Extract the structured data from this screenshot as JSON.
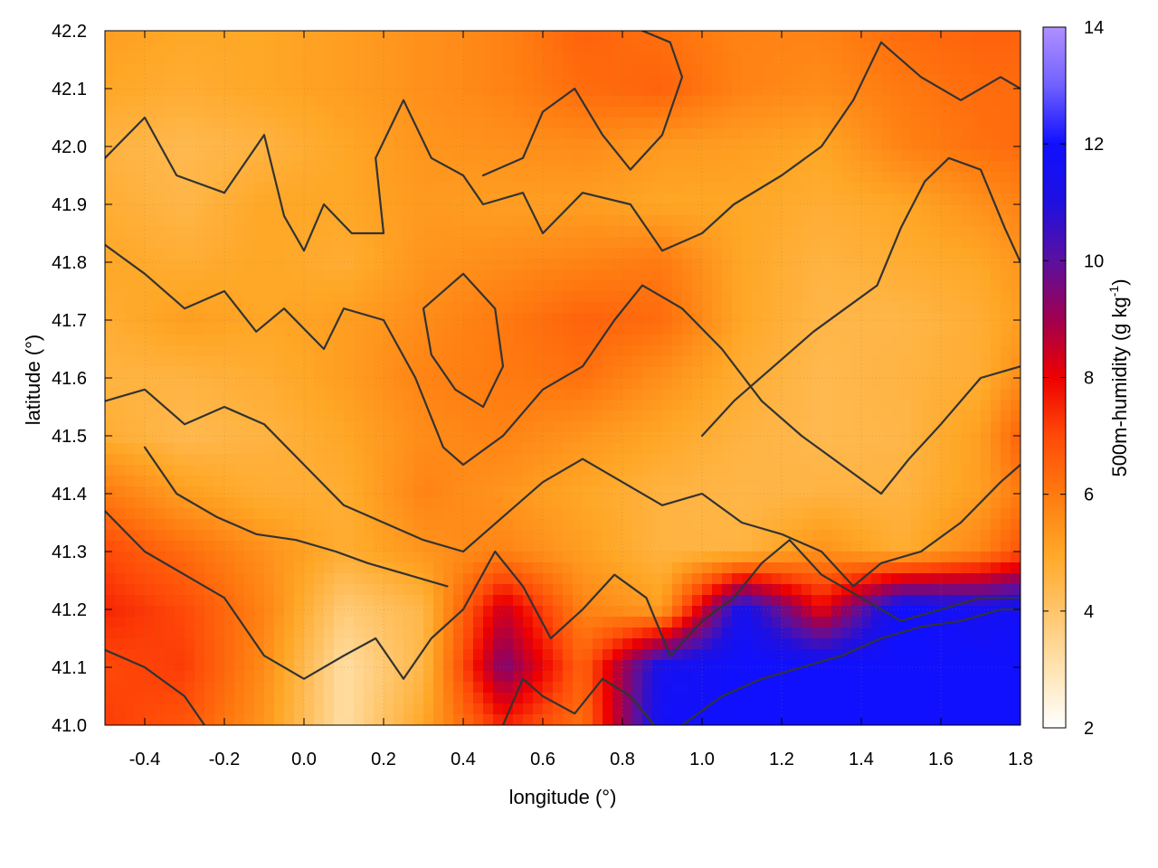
{
  "chart_data": {
    "type": "heatmap",
    "title": "",
    "xlabel": "longitude (°)",
    "ylabel": "latitude (°)",
    "colorbar_label": "500m-humidity (g kg",
    "colorbar_label_sup": "-1",
    "colorbar_label_end": ")",
    "xlim": [
      -0.5,
      1.8
    ],
    "ylim": [
      41.0,
      42.2
    ],
    "clim": [
      2,
      14
    ],
    "x_ticks": [
      -0.4,
      -0.2,
      0.0,
      0.2,
      0.4,
      0.6,
      0.8,
      1.0,
      1.2,
      1.4,
      1.6,
      1.8
    ],
    "x_tick_labels": [
      "-0.4",
      "-0.2",
      "0.0",
      "0.2",
      "0.4",
      "0.6",
      "0.8",
      "1.0",
      "1.2",
      "1.4",
      "1.6",
      "1.8"
    ],
    "y_ticks": [
      41.0,
      41.1,
      41.2,
      41.3,
      41.4,
      41.5,
      41.6,
      41.7,
      41.8,
      41.9,
      42.0,
      42.1,
      42.2
    ],
    "y_tick_labels": [
      "41.0",
      "41.1",
      "41.2",
      "41.3",
      "41.4",
      "41.5",
      "41.6",
      "41.7",
      "41.8",
      "41.9",
      "42.0",
      "42.1",
      "42.2"
    ],
    "colorbar_ticks": [
      2,
      4,
      6,
      8,
      10,
      12,
      14
    ],
    "colorbar_tick_labels": [
      "2",
      "4",
      "6",
      "8",
      "10",
      "12",
      "14"
    ],
    "grid": "dotted",
    "colormap": [
      {
        "value": 2,
        "color": "#ffffff"
      },
      {
        "value": 3,
        "color": "#ffe4b3"
      },
      {
        "value": 4,
        "color": "#ffc56a"
      },
      {
        "value": 5,
        "color": "#ffa726"
      },
      {
        "value": 6,
        "color": "#ff7a10"
      },
      {
        "value": 7,
        "color": "#ff4a08"
      },
      {
        "value": 8,
        "color": "#ee0000"
      },
      {
        "value": 9,
        "color": "#a00050"
      },
      {
        "value": 10,
        "color": "#5a10a0"
      },
      {
        "value": 11,
        "color": "#1e10e0"
      },
      {
        "value": 12,
        "color": "#1010ff"
      },
      {
        "value": 13,
        "color": "#7060ff"
      },
      {
        "value": 14,
        "color": "#b090ff"
      }
    ],
    "field_grid": {
      "x": [
        -0.5,
        -0.3,
        -0.1,
        0.1,
        0.3,
        0.5,
        0.7,
        0.9,
        1.1,
        1.3,
        1.5,
        1.7,
        1.8
      ],
      "y": [
        42.2,
        42.1,
        42.0,
        41.9,
        41.8,
        41.7,
        41.6,
        41.5,
        41.4,
        41.3,
        41.2,
        41.1,
        41.0
      ],
      "values": [
        [
          5.2,
          5.0,
          5.0,
          5.2,
          5.5,
          5.8,
          6.5,
          6.2,
          5.8,
          5.8,
          6.3,
          6.5,
          6.5
        ],
        [
          5.0,
          4.8,
          5.0,
          5.2,
          5.5,
          5.8,
          6.3,
          6.5,
          5.8,
          5.6,
          6.0,
          6.3,
          6.3
        ],
        [
          4.6,
          4.4,
          4.6,
          5.0,
          5.4,
          5.5,
          5.6,
          5.3,
          5.2,
          5.0,
          5.8,
          6.2,
          6.3
        ],
        [
          4.8,
          4.5,
          5.0,
          5.0,
          5.3,
          5.2,
          5.2,
          5.0,
          5.0,
          4.8,
          5.0,
          5.5,
          5.8
        ],
        [
          5.0,
          4.8,
          5.0,
          4.8,
          5.4,
          5.6,
          5.8,
          6.0,
          5.0,
          4.6,
          4.8,
          5.0,
          5.4
        ],
        [
          4.8,
          5.2,
          5.0,
          5.2,
          5.6,
          6.0,
          6.5,
          6.3,
          5.0,
          4.5,
          4.5,
          4.8,
          5.2
        ],
        [
          4.6,
          4.6,
          4.8,
          5.2,
          5.8,
          6.0,
          6.2,
          5.5,
          4.8,
          4.4,
          4.6,
          4.8,
          5.6
        ],
        [
          4.8,
          4.4,
          4.6,
          5.0,
          5.6,
          5.8,
          5.4,
          5.0,
          4.6,
          4.4,
          4.5,
          5.2,
          6.5
        ],
        [
          6.0,
          5.2,
          4.8,
          4.8,
          5.8,
          5.4,
          5.0,
          4.6,
          4.5,
          4.6,
          4.6,
          5.2,
          6.0
        ],
        [
          7.0,
          6.3,
          5.5,
          4.8,
          5.4,
          5.8,
          5.2,
          4.6,
          4.6,
          5.5,
          4.8,
          5.8,
          6.8
        ],
        [
          7.5,
          7.0,
          5.8,
          3.8,
          4.5,
          8.5,
          5.8,
          5.2,
          11.5,
          8.0,
          12.0,
          11.5,
          11.8
        ],
        [
          7.0,
          7.2,
          5.6,
          3.2,
          4.5,
          9.5,
          6.5,
          11.5,
          12.0,
          12.0,
          12.0,
          12.0,
          12.0
        ],
        [
          7.2,
          6.8,
          5.4,
          3.2,
          5.0,
          7.5,
          6.2,
          11.8,
          12.0,
          12.0,
          12.0,
          12.0,
          12.0
        ]
      ]
    },
    "contours": [
      {
        "name": "contour-line",
        "points": [
          [
            -0.5,
            41.98
          ],
          [
            -0.4,
            42.05
          ],
          [
            -0.32,
            41.95
          ],
          [
            -0.2,
            41.92
          ],
          [
            -0.1,
            42.02
          ],
          [
            -0.05,
            41.88
          ],
          [
            0.0,
            41.82
          ],
          [
            0.05,
            41.9
          ],
          [
            0.12,
            41.85
          ],
          [
            0.2,
            41.85
          ],
          [
            0.18,
            41.98
          ],
          [
            0.25,
            42.08
          ],
          [
            0.32,
            41.98
          ],
          [
            0.4,
            41.95
          ],
          [
            0.45,
            41.9
          ],
          [
            0.55,
            41.92
          ],
          [
            0.6,
            41.85
          ],
          [
            0.7,
            41.92
          ],
          [
            0.82,
            41.9
          ],
          [
            0.9,
            41.82
          ],
          [
            1.0,
            41.85
          ],
          [
            1.08,
            41.9
          ],
          [
            1.2,
            41.95
          ],
          [
            1.3,
            42.0
          ],
          [
            1.38,
            42.08
          ],
          [
            1.45,
            42.18
          ],
          [
            1.55,
            42.12
          ],
          [
            1.65,
            42.08
          ],
          [
            1.75,
            42.12
          ],
          [
            1.8,
            42.1
          ]
        ]
      },
      {
        "name": "contour-line",
        "points": [
          [
            -0.5,
            41.83
          ],
          [
            -0.4,
            41.78
          ],
          [
            -0.3,
            41.72
          ],
          [
            -0.2,
            41.75
          ],
          [
            -0.12,
            41.68
          ],
          [
            -0.05,
            41.72
          ],
          [
            0.05,
            41.65
          ],
          [
            0.1,
            41.72
          ],
          [
            0.2,
            41.7
          ],
          [
            0.28,
            41.6
          ],
          [
            0.35,
            41.48
          ],
          [
            0.4,
            41.45
          ],
          [
            0.5,
            41.5
          ],
          [
            0.6,
            41.58
          ],
          [
            0.7,
            41.62
          ],
          [
            0.78,
            41.7
          ],
          [
            0.85,
            41.76
          ],
          [
            0.95,
            41.72
          ],
          [
            1.05,
            41.65
          ],
          [
            1.15,
            41.56
          ],
          [
            1.25,
            41.5
          ],
          [
            1.35,
            41.45
          ],
          [
            1.45,
            41.4
          ],
          [
            1.52,
            41.46
          ],
          [
            1.6,
            41.52
          ],
          [
            1.7,
            41.6
          ],
          [
            1.8,
            41.62
          ]
        ]
      },
      {
        "name": "contour-line",
        "points": [
          [
            -0.5,
            41.56
          ],
          [
            -0.4,
            41.58
          ],
          [
            -0.3,
            41.52
          ],
          [
            -0.2,
            41.55
          ],
          [
            -0.1,
            41.52
          ],
          [
            0.0,
            41.45
          ],
          [
            0.1,
            41.38
          ],
          [
            0.2,
            41.35
          ],
          [
            0.3,
            41.32
          ],
          [
            0.4,
            41.3
          ],
          [
            0.5,
            41.36
          ],
          [
            0.6,
            41.42
          ],
          [
            0.7,
            41.46
          ],
          [
            0.8,
            41.42
          ],
          [
            0.9,
            41.38
          ],
          [
            1.0,
            41.4
          ],
          [
            1.1,
            41.35
          ],
          [
            1.2,
            41.33
          ],
          [
            1.3,
            41.3
          ],
          [
            1.38,
            41.24
          ],
          [
            1.45,
            41.28
          ],
          [
            1.55,
            41.3
          ],
          [
            1.65,
            41.35
          ],
          [
            1.75,
            41.42
          ],
          [
            1.8,
            41.45
          ]
        ]
      },
      {
        "name": "contour-line",
        "points": [
          [
            -0.5,
            41.37
          ],
          [
            -0.4,
            41.3
          ],
          [
            -0.3,
            41.26
          ],
          [
            -0.2,
            41.22
          ],
          [
            -0.1,
            41.12
          ],
          [
            0.0,
            41.08
          ],
          [
            0.1,
            41.12
          ],
          [
            0.18,
            41.15
          ],
          [
            0.25,
            41.08
          ],
          [
            0.32,
            41.15
          ],
          [
            0.4,
            41.2
          ],
          [
            0.48,
            41.3
          ],
          [
            0.55,
            41.24
          ],
          [
            0.62,
            41.15
          ],
          [
            0.7,
            41.2
          ],
          [
            0.78,
            41.26
          ],
          [
            0.86,
            41.22
          ],
          [
            0.92,
            41.12
          ],
          [
            1.0,
            41.18
          ],
          [
            1.08,
            41.22
          ],
          [
            1.15,
            41.28
          ],
          [
            1.22,
            41.32
          ],
          [
            1.3,
            41.26
          ],
          [
            1.4,
            41.22
          ],
          [
            1.5,
            41.18
          ],
          [
            1.6,
            41.2
          ],
          [
            1.7,
            41.22
          ],
          [
            1.8,
            41.22
          ]
        ]
      },
      {
        "name": "contour-line",
        "points": [
          [
            -0.5,
            41.13
          ],
          [
            -0.4,
            41.1
          ],
          [
            -0.3,
            41.05
          ],
          [
            -0.25,
            41.0
          ]
        ]
      },
      {
        "name": "contour-line",
        "points": [
          [
            0.5,
            41.0
          ],
          [
            0.55,
            41.08
          ],
          [
            0.6,
            41.05
          ],
          [
            0.68,
            41.02
          ],
          [
            0.75,
            41.08
          ],
          [
            0.82,
            41.05
          ],
          [
            0.88,
            41.0
          ]
        ]
      },
      {
        "name": "contour-line",
        "points": [
          [
            0.95,
            41.0
          ],
          [
            1.05,
            41.05
          ],
          [
            1.15,
            41.08
          ],
          [
            1.25,
            41.1
          ],
          [
            1.35,
            41.12
          ],
          [
            1.45,
            41.15
          ],
          [
            1.55,
            41.17
          ],
          [
            1.65,
            41.18
          ],
          [
            1.75,
            41.2
          ],
          [
            1.8,
            41.2
          ]
        ]
      },
      {
        "name": "contour-line",
        "points": [
          [
            0.45,
            41.95
          ],
          [
            0.55,
            41.98
          ],
          [
            0.6,
            42.06
          ],
          [
            0.68,
            42.1
          ],
          [
            0.75,
            42.02
          ],
          [
            0.82,
            41.96
          ],
          [
            0.9,
            42.02
          ],
          [
            0.95,
            42.12
          ],
          [
            0.92,
            42.18
          ],
          [
            0.85,
            42.2
          ]
        ]
      },
      {
        "name": "contour-line",
        "points": [
          [
            0.3,
            41.72
          ],
          [
            0.4,
            41.78
          ],
          [
            0.48,
            41.72
          ],
          [
            0.5,
            41.62
          ],
          [
            0.45,
            41.55
          ],
          [
            0.38,
            41.58
          ],
          [
            0.32,
            41.64
          ],
          [
            0.3,
            41.72
          ]
        ]
      },
      {
        "name": "contour-line",
        "points": [
          [
            -0.4,
            41.48
          ],
          [
            -0.32,
            41.4
          ],
          [
            -0.22,
            41.36
          ],
          [
            -0.12,
            41.33
          ],
          [
            -0.02,
            41.32
          ],
          [
            0.08,
            41.3
          ],
          [
            0.16,
            41.28
          ],
          [
            0.26,
            41.26
          ],
          [
            0.36,
            41.24
          ]
        ]
      },
      {
        "name": "contour-line",
        "points": [
          [
            1.0,
            41.5
          ],
          [
            1.08,
            41.56
          ],
          [
            1.18,
            41.62
          ],
          [
            1.28,
            41.68
          ],
          [
            1.36,
            41.72
          ],
          [
            1.44,
            41.76
          ],
          [
            1.5,
            41.86
          ],
          [
            1.56,
            41.94
          ],
          [
            1.62,
            41.98
          ],
          [
            1.7,
            41.96
          ],
          [
            1.76,
            41.86
          ],
          [
            1.8,
            41.8
          ]
        ]
      }
    ]
  }
}
